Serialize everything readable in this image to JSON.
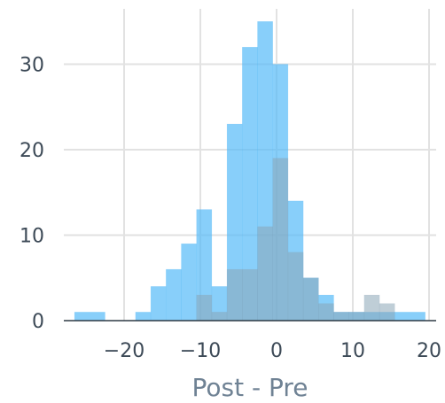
{
  "chart_data": {
    "type": "bar",
    "xlabel": "Post - Pre",
    "ylabel": "",
    "xlim": [
      -28,
      21
    ],
    "ylim": [
      0,
      36
    ],
    "grid": true,
    "x_ticks": [
      "−20",
      "−10",
      "0",
      "10",
      "20"
    ],
    "x_tick_values": [
      -20,
      -10,
      0,
      10,
      20
    ],
    "y_ticks": [
      "0",
      "10",
      "20",
      "30"
    ],
    "y_tick_values": [
      0,
      10,
      20,
      30
    ],
    "series": [
      {
        "color": "#4fb8f7",
        "opacity": 0.68,
        "bins": [
          {
            "x0": -26.5,
            "x1": -22.5,
            "count": 1
          },
          {
            "x0": -18.5,
            "x1": -16.5,
            "count": 1
          },
          {
            "x0": -16.5,
            "x1": -14.5,
            "count": 4
          },
          {
            "x0": -14.5,
            "x1": -12.5,
            "count": 6
          },
          {
            "x0": -12.5,
            "x1": -10.5,
            "count": 9
          },
          {
            "x0": -10.5,
            "x1": -8.5,
            "count": 13
          },
          {
            "x0": -8.5,
            "x1": -6.5,
            "count": 4
          },
          {
            "x0": -6.5,
            "x1": -4.5,
            "count": 23
          },
          {
            "x0": -4.5,
            "x1": -2.5,
            "count": 32
          },
          {
            "x0": -2.5,
            "x1": -0.5,
            "count": 35
          },
          {
            "x0": -0.5,
            "x1": 1.5,
            "count": 30
          },
          {
            "x0": 1.5,
            "x1": 3.5,
            "count": 14
          },
          {
            "x0": 3.5,
            "x1": 5.5,
            "count": 5
          },
          {
            "x0": 5.5,
            "x1": 7.5,
            "count": 3
          },
          {
            "x0": 7.5,
            "x1": 9.5,
            "count": 1
          },
          {
            "x0": 9.5,
            "x1": 11.5,
            "count": 1
          },
          {
            "x0": 11.5,
            "x1": 13.5,
            "count": 1
          },
          {
            "x0": 13.5,
            "x1": 15.5,
            "count": 1
          },
          {
            "x0": 15.5,
            "x1": 19.5,
            "count": 1
          }
        ]
      },
      {
        "color": "#8aa5b6",
        "opacity": 0.55,
        "bins": [
          {
            "x0": -10.5,
            "x1": -8.5,
            "count": 3
          },
          {
            "x0": -8.5,
            "x1": -6.5,
            "count": 1
          },
          {
            "x0": -6.5,
            "x1": -4.5,
            "count": 6
          },
          {
            "x0": -4.5,
            "x1": -2.5,
            "count": 6
          },
          {
            "x0": -2.5,
            "x1": -0.5,
            "count": 11
          },
          {
            "x0": -0.5,
            "x1": 1.5,
            "count": 19
          },
          {
            "x0": 1.5,
            "x1": 3.5,
            "count": 8
          },
          {
            "x0": 3.5,
            "x1": 5.5,
            "count": 5
          },
          {
            "x0": 5.5,
            "x1": 7.5,
            "count": 2
          },
          {
            "x0": 7.5,
            "x1": 9.5,
            "count": 1
          },
          {
            "x0": 9.5,
            "x1": 11.5,
            "count": 1
          },
          {
            "x0": 11.5,
            "x1": 13.5,
            "count": 3
          },
          {
            "x0": 13.5,
            "x1": 15.5,
            "count": 2
          }
        ]
      }
    ]
  }
}
